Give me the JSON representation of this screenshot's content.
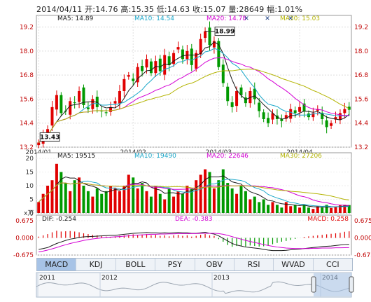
{
  "header": {
    "date": "2014/04/11",
    "open": "开:14.76",
    "high": "高:15.35",
    "low": "低:14.63",
    "close": "收:15.07",
    "volume": "量:28649",
    "change": "幅:1.01%"
  },
  "chart_data": [
    {
      "type": "candlestick",
      "name": "price",
      "ylim": [
        13.2,
        19.5
      ],
      "y_ticks": [
        "19.2",
        "18.0",
        "16.8",
        "15.6",
        "14.4",
        "13.2"
      ],
      "x_ticks": [
        "2014/01",
        "2014/02",
        "2014/03",
        "2014/04"
      ],
      "legend": [
        {
          "label": "MA5: 14.89",
          "color": "#1a1a1a"
        },
        {
          "label": "MA10: 14.54",
          "color": "#1aa7c9"
        },
        {
          "label": "MA20: 14.78",
          "color": "#d400d4"
        },
        {
          "label": "MA30: 15.03",
          "color": "#b3b300"
        }
      ],
      "annotations": {
        "max_label": "18.99",
        "min_label": "13.43"
      },
      "up_color": "#e00000",
      "down_color": "#009900",
      "close": [
        13.43,
        13.8,
        14.1,
        15.2,
        15.8,
        14.9,
        15.0,
        15.5,
        15.4,
        16.0,
        15.3,
        15.1,
        15.6,
        15.2,
        15.0,
        14.9,
        15.2,
        15.5,
        16.0,
        16.6,
        16.8,
        16.5,
        17.2,
        17.0,
        17.6,
        16.9,
        17.5,
        17.0,
        17.8,
        17.3,
        17.9,
        18.2,
        17.6,
        18.0,
        17.3,
        17.9,
        18.6,
        18.99,
        18.3,
        18.5,
        17.2,
        16.4,
        15.5,
        15.2,
        16.0,
        15.8,
        15.4,
        16.0,
        15.6,
        15.0,
        14.6,
        14.4,
        14.9,
        14.6,
        14.5,
        14.8,
        15.1,
        14.9,
        15.2,
        15.0,
        14.7,
        14.9,
        15.1,
        14.6,
        14.2,
        14.4,
        14.7,
        14.9,
        15.1,
        15.07
      ]
    },
    {
      "type": "bar",
      "name": "volume",
      "ylim": [
        0,
        20
      ],
      "y_ticks": [
        "20",
        "15",
        "10",
        "5",
        "0"
      ],
      "y_unit": "x万",
      "legend": [
        {
          "label": "MA5: 19515",
          "color": "#1a1a1a"
        },
        {
          "label": "MA10: 19490",
          "color": "#1aa7c9"
        },
        {
          "label": "MA20: 22646",
          "color": "#d400d4"
        },
        {
          "label": "MA30: 27206",
          "color": "#b3b300"
        }
      ],
      "values": [
        4,
        7,
        10,
        12,
        18,
        15,
        11,
        8,
        12,
        13,
        10,
        8,
        6,
        9,
        7,
        8,
        10,
        9,
        8,
        10,
        14,
        13,
        9,
        11,
        8,
        6,
        10,
        7,
        5,
        9,
        6,
        8,
        7,
        10,
        9,
        12,
        14,
        16,
        15,
        9,
        12,
        16,
        11,
        9,
        7,
        10,
        8,
        5,
        6,
        4,
        5,
        3,
        4,
        3,
        2,
        4,
        2.5,
        3,
        2,
        3,
        2,
        1.5,
        2.5,
        2,
        3,
        1.8,
        2.2,
        2.8,
        3,
        2.9
      ]
    },
    {
      "type": "bar",
      "name": "MACD",
      "ylim": [
        -0.675,
        0.675
      ],
      "y_ticks": [
        "0.675",
        "0.000",
        "-0.675"
      ],
      "legend": [
        {
          "label": "DIF: -0.254",
          "color": "#1a1a1a"
        },
        {
          "label": "DEA: -0.383",
          "color": "#d400d4"
        },
        {
          "label": "MACD: 0.258",
          "color": "#e00000"
        }
      ],
      "hist": [
        0.05,
        0.1,
        0.15,
        0.22,
        0.28,
        0.25,
        0.26,
        0.27,
        0.25,
        0.22,
        0.18,
        0.15,
        0.12,
        0.1,
        0.08,
        0.05,
        0.04,
        0.06,
        0.08,
        0.1,
        0.12,
        0.14,
        0.12,
        0.13,
        0.15,
        0.1,
        0.12,
        0.08,
        0.1,
        0.06,
        0.1,
        0.12,
        0.08,
        0.1,
        0.05,
        0.08,
        0.12,
        0.15,
        0.1,
        0.08,
        -0.05,
        -0.15,
        -0.28,
        -0.35,
        -0.32,
        -0.33,
        -0.34,
        -0.3,
        -0.32,
        -0.34,
        -0.33,
        -0.3,
        -0.25,
        -0.2,
        -0.15,
        -0.12,
        -0.08,
        -0.04,
        0.0,
        0.04,
        0.06,
        0.08,
        0.1,
        0.12,
        0.14,
        0.16,
        0.18,
        0.2,
        0.24,
        0.258
      ],
      "dif": [
        -0.45,
        -0.42,
        -0.38,
        -0.3,
        -0.22,
        -0.16,
        -0.1,
        -0.05,
        -0.02,
        0.02,
        0.04,
        0.05,
        0.06,
        0.07,
        0.08,
        0.09,
        0.1,
        0.1,
        0.12,
        0.14,
        0.16,
        0.18,
        0.19,
        0.2,
        0.21,
        0.2,
        0.2,
        0.19,
        0.2,
        0.19,
        0.2,
        0.21,
        0.2,
        0.2,
        0.18,
        0.18,
        0.2,
        0.22,
        0.18,
        0.15,
        0.08,
        -0.02,
        -0.12,
        -0.22,
        -0.28,
        -0.32,
        -0.36,
        -0.38,
        -0.4,
        -0.42,
        -0.45,
        -0.48,
        -0.5,
        -0.5,
        -0.5,
        -0.49,
        -0.47,
        -0.45,
        -0.44,
        -0.42,
        -0.4,
        -0.38,
        -0.36,
        -0.34,
        -0.33,
        -0.32,
        -0.3,
        -0.28,
        -0.26,
        -0.254
      ],
      "dea": [
        -0.55,
        -0.52,
        -0.48,
        -0.43,
        -0.38,
        -0.32,
        -0.27,
        -0.22,
        -0.18,
        -0.14,
        -0.1,
        -0.07,
        -0.04,
        -0.02,
        0.0,
        0.02,
        0.03,
        0.04,
        0.05,
        0.07,
        0.08,
        0.1,
        0.11,
        0.12,
        0.13,
        0.14,
        0.14,
        0.15,
        0.15,
        0.16,
        0.16,
        0.17,
        0.17,
        0.17,
        0.17,
        0.17,
        0.18,
        0.18,
        0.18,
        0.18,
        0.17,
        0.14,
        0.1,
        0.05,
        0.0,
        -0.05,
        -0.1,
        -0.14,
        -0.18,
        -0.22,
        -0.26,
        -0.3,
        -0.33,
        -0.36,
        -0.38,
        -0.4,
        -0.41,
        -0.42,
        -0.42,
        -0.42,
        -0.42,
        -0.41,
        -0.41,
        -0.4,
        -0.4,
        -0.4,
        -0.39,
        -0.39,
        -0.385,
        -0.383
      ]
    }
  ],
  "tabs": [
    "MACD",
    "KDJ",
    "BOLL",
    "PSY",
    "OBV",
    "RSI",
    "WVAD",
    "CCI"
  ],
  "active_tab": "MACD",
  "overview": {
    "years": [
      "2011",
      "2012",
      "2013",
      "2014"
    ],
    "selection_range": [
      0.88,
      1.0
    ]
  }
}
